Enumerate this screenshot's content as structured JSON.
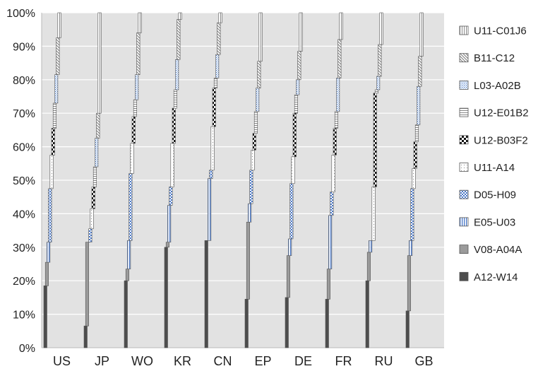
{
  "chart_data": {
    "type": "bar",
    "stacked": true,
    "percent": true,
    "categories": [
      "US",
      "JP",
      "WO",
      "KR",
      "CN",
      "EP",
      "DE",
      "FR",
      "RU",
      "GB"
    ],
    "ylim": [
      0,
      100
    ],
    "yticks": [
      "0%",
      "10%",
      "20%",
      "30%",
      "40%",
      "50%",
      "60%",
      "70%",
      "80%",
      "90%",
      "100%"
    ],
    "grid": true,
    "legend_position": "right",
    "series": [
      {
        "name": "A12-W14",
        "values": [
          18.5,
          6.5,
          20,
          30,
          32,
          14.5,
          15,
          14.5,
          20,
          11
        ]
      },
      {
        "name": "V08-A04A",
        "values": [
          7,
          25,
          3.5,
          1.5,
          0,
          23,
          12.5,
          9,
          8.5,
          16.5
        ]
      },
      {
        "name": "E05-U03",
        "values": [
          6,
          0,
          8.5,
          11,
          18.5,
          5.5,
          5,
          16,
          3.5,
          4.5
        ]
      },
      {
        "name": "D05-H09",
        "values": [
          16,
          4,
          20,
          5.5,
          2.5,
          10,
          16.5,
          7,
          0,
          15.5
        ]
      },
      {
        "name": "U11-A14",
        "values": [
          10,
          6,
          9,
          13,
          13,
          6,
          8,
          11,
          16,
          6
        ]
      },
      {
        "name": "U12-B03F2",
        "values": [
          8,
          6.5,
          8,
          10.5,
          11.5,
          5,
          13,
          8,
          28,
          8
        ]
      },
      {
        "name": "U12-E01B2",
        "values": [
          7.5,
          6,
          5,
          5.5,
          3,
          6.5,
          5.5,
          5,
          1,
          5
        ]
      },
      {
        "name": "L03-A02B",
        "values": [
          8.5,
          8.5,
          7.5,
          9,
          7,
          7,
          4.5,
          10,
          4,
          11.5
        ]
      },
      {
        "name": "B11-C12",
        "values": [
          11,
          7.5,
          12.5,
          12,
          9.5,
          8,
          8.5,
          11.5,
          9.5,
          9
        ]
      },
      {
        "name": "U11-C01J6",
        "values": [
          7.5,
          30,
          6,
          2,
          3,
          14.5,
          11.5,
          8,
          9.5,
          13
        ]
      }
    ],
    "colors": {
      "plot_bg": "#e2e2e2",
      "grid": "#ffffff",
      "axis": "#bbbbbb",
      "bar_stroke": "#555555",
      "solid_dark": "#4d4d4d",
      "solid_gray": "#9b9b9b",
      "blue": "#4a78c8"
    }
  }
}
